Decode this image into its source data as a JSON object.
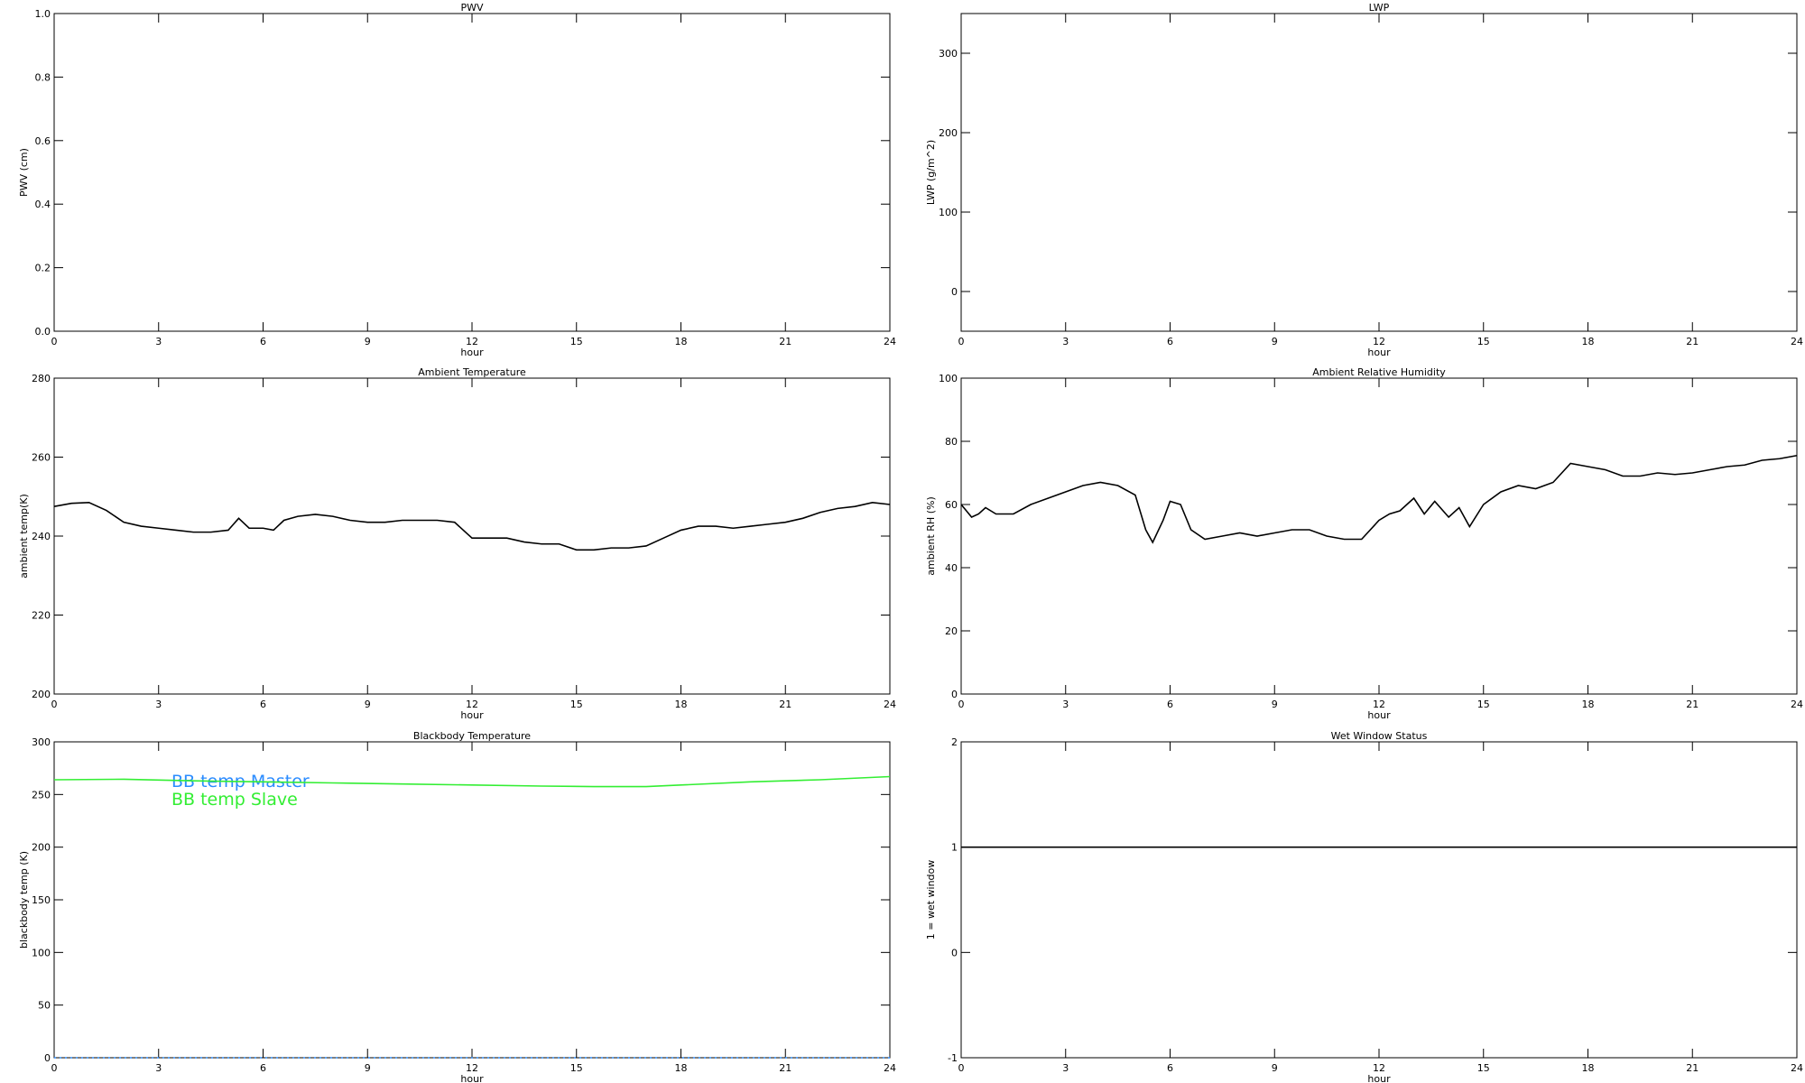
{
  "chart_data": [
    {
      "type": "line",
      "title": "PWV",
      "xlabel": "hour",
      "ylabel": "PWV (cm)",
      "xlim": [
        0,
        24
      ],
      "xticks": [
        0,
        3,
        6,
        9,
        12,
        15,
        18,
        21,
        24
      ],
      "ylim": [
        0,
        1
      ],
      "yticks": [
        {
          "value": 0,
          "label": "0.0"
        },
        0.2,
        0.4,
        0.6,
        0.8,
        {
          "value": 1,
          "label": "1.0"
        }
      ],
      "series": []
    },
    {
      "type": "line",
      "title": "LWP",
      "xlabel": "hour",
      "ylabel": "LWP (g/m^2)",
      "xlim": [
        0,
        24
      ],
      "xticks": [
        0,
        3,
        6,
        9,
        12,
        15,
        18,
        21,
        24
      ],
      "ylim": [
        -50,
        350
      ],
      "yticks": [
        0,
        100,
        200,
        300
      ],
      "series": []
    },
    {
      "type": "line",
      "title": "Ambient Temperature",
      "xlabel": "hour",
      "ylabel": "ambient temp(K)",
      "xlim": [
        0,
        24
      ],
      "xticks": [
        0,
        3,
        6,
        9,
        12,
        15,
        18,
        21,
        24
      ],
      "ylim": [
        200,
        280
      ],
      "yticks": [
        200,
        220,
        240,
        260,
        280
      ],
      "series": [
        {
          "color": "#000000",
          "x": [
            0,
            0.5,
            1,
            1.5,
            2,
            2.5,
            3,
            3.5,
            4,
            4.5,
            5,
            5.3,
            5.6,
            6,
            6.3,
            6.6,
            7,
            7.5,
            8,
            8.5,
            9,
            9.5,
            10,
            10.5,
            11,
            11.5,
            12,
            12.5,
            13,
            13.5,
            14,
            14.5,
            15,
            15.5,
            16,
            16.5,
            17,
            17.5,
            18,
            18.5,
            19,
            19.5,
            20,
            20.5,
            21,
            21.5,
            22,
            22.5,
            23,
            23.5,
            24
          ],
          "values": [
            247.5,
            248.3,
            248.5,
            246.5,
            243.5,
            242.5,
            242,
            241.5,
            241,
            241,
            241.5,
            244.5,
            242,
            242,
            241.5,
            244,
            245,
            245.5,
            245,
            244,
            243.5,
            243.5,
            244,
            244,
            244,
            243.5,
            239.5,
            239.5,
            239.5,
            238.5,
            238,
            238,
            236.5,
            236.5,
            237,
            237,
            237.5,
            239.5,
            241.5,
            242.5,
            242.5,
            242,
            242.5,
            243,
            243.5,
            244.5,
            246,
            247,
            247.5,
            248.5,
            248
          ]
        }
      ]
    },
    {
      "type": "line",
      "title": "Ambient Relative Humidity",
      "xlabel": "hour",
      "ylabel": "ambient RH (%)",
      "xlim": [
        0,
        24
      ],
      "xticks": [
        0,
        3,
        6,
        9,
        12,
        15,
        18,
        21,
        24
      ],
      "ylim": [
        0,
        100
      ],
      "yticks": [
        0,
        20,
        40,
        60,
        80,
        100
      ],
      "series": [
        {
          "color": "#000000",
          "x": [
            0,
            0.3,
            0.5,
            0.7,
            1,
            1.5,
            2,
            2.5,
            3,
            3.5,
            4,
            4.5,
            5,
            5.3,
            5.5,
            5.8,
            6,
            6.3,
            6.6,
            7,
            7.5,
            8,
            8.5,
            9,
            9.5,
            10,
            10.5,
            11,
            11.5,
            12,
            12.3,
            12.6,
            13,
            13.3,
            13.6,
            14,
            14.3,
            14.6,
            15,
            15.5,
            16,
            16.5,
            17,
            17.5,
            18,
            18.5,
            19,
            19.5,
            20,
            20.5,
            21,
            21.5,
            22,
            22.5,
            23,
            23.5,
            24
          ],
          "values": [
            60,
            56,
            57,
            59,
            57,
            57,
            60,
            62,
            64,
            66,
            67,
            66,
            63,
            52,
            48,
            55,
            61,
            60,
            52,
            49,
            50,
            51,
            50,
            51,
            52,
            52,
            50,
            49,
            49,
            55,
            57,
            58,
            62,
            57,
            61,
            56,
            59,
            53,
            60,
            64,
            66,
            65,
            67,
            73,
            72,
            71,
            69,
            69,
            70,
            69.5,
            70,
            71,
            72,
            72.5,
            74,
            74.5,
            75.5
          ]
        }
      ]
    },
    {
      "type": "line",
      "title": "Blackbody Temperature",
      "xlabel": "hour",
      "ylabel": "blackbody temp (K)",
      "xlim": [
        0,
        24
      ],
      "xticks": [
        0,
        3,
        6,
        9,
        12,
        15,
        18,
        21,
        24
      ],
      "ylim": [
        0,
        300
      ],
      "yticks": [
        0,
        50,
        100,
        150,
        200,
        250,
        300
      ],
      "series": [
        {
          "name": "BB temp Master",
          "color": "#2b8cff",
          "x": [
            0,
            24
          ],
          "values": [
            0,
            0
          ]
        },
        {
          "name": "BB temp Slave",
          "color": "#33ee33",
          "x": [
            0,
            2,
            4,
            6,
            8,
            10,
            12,
            14,
            15.5,
            17,
            18,
            20,
            22,
            24
          ],
          "values": [
            264,
            264.5,
            263,
            262,
            261,
            260,
            259,
            258,
            257.5,
            257.5,
            259,
            262,
            264,
            267
          ]
        }
      ]
    },
    {
      "type": "line",
      "title": "Wet Window Status",
      "xlabel": "hour",
      "ylabel": "1 = wet window",
      "xlim": [
        0,
        24
      ],
      "xticks": [
        0,
        3,
        6,
        9,
        12,
        15,
        18,
        21,
        24
      ],
      "ylim": [
        -1,
        2
      ],
      "yticks": [
        -1,
        0,
        1,
        2
      ],
      "series": [
        {
          "color": "#000000",
          "x": [
            0,
            24
          ],
          "values": [
            1,
            1
          ]
        }
      ]
    }
  ]
}
